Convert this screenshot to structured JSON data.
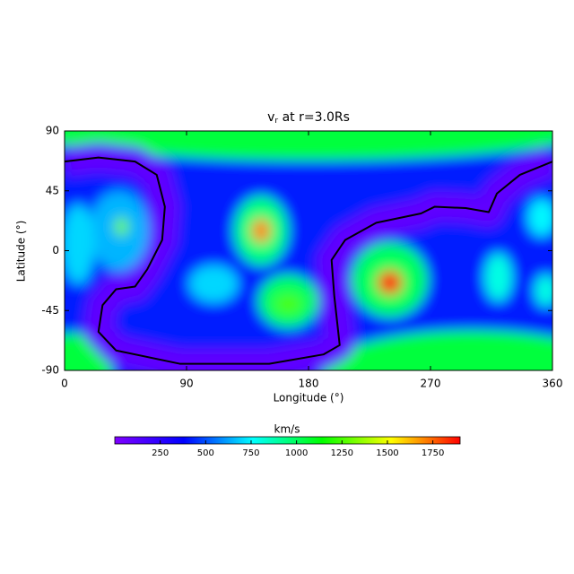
{
  "chart_data": {
    "type": "heatmap",
    "title": {
      "main": "v",
      "sub": "r",
      "rest": " at r=3.0Rs"
    },
    "x_label": "Longitude (°)",
    "y_label": "Latitude (°)",
    "xlim": [
      0,
      360
    ],
    "xticks": [
      0,
      90,
      180,
      270,
      360
    ],
    "ylim": [
      -90,
      90
    ],
    "yticks": [
      -90,
      -45,
      0,
      45,
      90
    ],
    "colorbar": {
      "label": "km/s",
      "clim": [
        0,
        1900
      ],
      "ticks": [
        250,
        500,
        750,
        1000,
        1250,
        1500,
        1750
      ],
      "colors": [
        "#7f00ff",
        "#0000ff",
        "#00ffff",
        "#00ff00",
        "#ffff00",
        "#ff0000"
      ]
    },
    "field": {
      "base": 420,
      "band_value": 100,
      "blobs": [
        {
          "lon": 180,
          "lat": 92,
          "rx": 210,
          "ry": 24,
          "value": 1050
        },
        {
          "lon": 300,
          "lat": -92,
          "rx": 110,
          "ry": 32,
          "value": 1050
        },
        {
          "lon": 5,
          "lat": -90,
          "rx": 30,
          "ry": 28,
          "value": 1050
        },
        {
          "lon": 110,
          "lat": -25,
          "rx": 18,
          "ry": 14,
          "value": 700
        },
        {
          "lon": 40,
          "lat": 15,
          "rx": 22,
          "ry": 30,
          "value": 650
        },
        {
          "lon": 10,
          "lat": 5,
          "rx": 12,
          "ry": 30,
          "value": 700
        },
        {
          "lon": 320,
          "lat": -20,
          "rx": 10,
          "ry": 18,
          "value": 800
        },
        {
          "lon": 352,
          "lat": 25,
          "rx": 10,
          "ry": 14,
          "value": 750
        },
        {
          "lon": 355,
          "lat": -30,
          "rx": 8,
          "ry": 12,
          "value": 800
        },
        {
          "lon": 145,
          "lat": 15,
          "rx": 20,
          "ry": 26,
          "value": 950
        },
        {
          "lon": 145,
          "lat": 15,
          "rx": 7,
          "ry": 9,
          "value": 1700
        },
        {
          "lon": 165,
          "lat": -38,
          "rx": 22,
          "ry": 20,
          "value": 1000
        },
        {
          "lon": 165,
          "lat": -40,
          "rx": 10,
          "ry": 7,
          "value": 1250
        },
        {
          "lon": 240,
          "lat": -22,
          "rx": 28,
          "ry": 28,
          "value": 1000
        },
        {
          "lon": 240,
          "lat": -24,
          "rx": 9,
          "ry": 9,
          "value": 1850
        },
        {
          "lon": 42,
          "lat": 18,
          "rx": 5,
          "ry": 7,
          "value": 1300
        }
      ],
      "neutral_line": {
        "lon": [
          0,
          25,
          52,
          68,
          74,
          72,
          61,
          52,
          38,
          28,
          25,
          38,
          85,
          151,
          191,
          203,
          199,
          197,
          207,
          230,
          263,
          273,
          296,
          313,
          319,
          336,
          360
        ],
        "lat": [
          67,
          70,
          67,
          57,
          33,
          8,
          -14,
          -27,
          -29,
          -41,
          -61,
          -75,
          -85,
          -85,
          -78,
          -71,
          -34,
          -7,
          8,
          21,
          28,
          33,
          32,
          29,
          43,
          57,
          67
        ]
      }
    }
  }
}
